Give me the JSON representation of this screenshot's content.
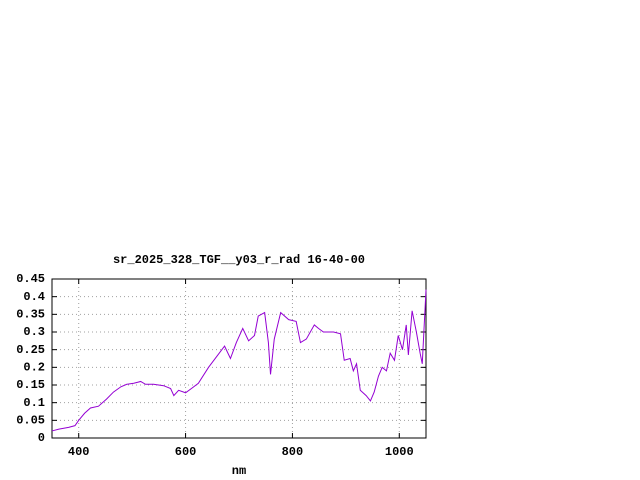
{
  "chart_data": {
    "type": "line",
    "title": "sr_2025_328_TGF__y03_r_rad 16-40-00",
    "x_label": "nm",
    "x": [
      350,
      363,
      381,
      393,
      400,
      411,
      422,
      437,
      452,
      465,
      479,
      490,
      503,
      516,
      525,
      540,
      559,
      572,
      578,
      587,
      600,
      611,
      624,
      643,
      658,
      673,
      684,
      695,
      707,
      718,
      729,
      736,
      748,
      755,
      759,
      766,
      778,
      793,
      807,
      815,
      826,
      841,
      849,
      858,
      877,
      890,
      897,
      908,
      914,
      920,
      927,
      938,
      946,
      953,
      961,
      968,
      976,
      983,
      991,
      998,
      1006,
      1013,
      1017,
      1024,
      1032,
      1039,
      1043,
      1050
    ],
    "series": [
      {
        "name": "sr_2025_328_TGF__y03_r_rad 16-40-00",
        "color": "#9400d3",
        "values": [
          0.02,
          0.025,
          0.03,
          0.035,
          0.05,
          0.07,
          0.085,
          0.09,
          0.11,
          0.13,
          0.145,
          0.152,
          0.155,
          0.16,
          0.152,
          0.152,
          0.148,
          0.14,
          0.12,
          0.135,
          0.128,
          0.14,
          0.155,
          0.2,
          0.23,
          0.26,
          0.225,
          0.27,
          0.31,
          0.275,
          0.29,
          0.345,
          0.355,
          0.27,
          0.18,
          0.28,
          0.355,
          0.335,
          0.33,
          0.27,
          0.28,
          0.32,
          0.31,
          0.3,
          0.3,
          0.295,
          0.22,
          0.225,
          0.19,
          0.21,
          0.135,
          0.12,
          0.105,
          0.13,
          0.175,
          0.2,
          0.19,
          0.24,
          0.22,
          0.29,
          0.25,
          0.32,
          0.235,
          0.36,
          0.3,
          0.24,
          0.21,
          0.42
        ]
      }
    ],
    "xlim": [
      350,
      1050
    ],
    "ylim": [
      0,
      0.45
    ],
    "xticks": [
      400,
      600,
      800,
      1000
    ],
    "yticks": [
      0,
      0.05,
      0.1,
      0.15,
      0.2,
      0.25,
      0.3,
      0.35,
      0.4,
      0.45
    ],
    "grid": true
  }
}
